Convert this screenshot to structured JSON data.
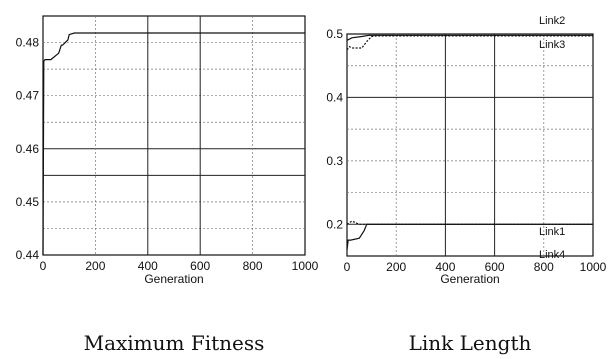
{
  "chart_data": [
    {
      "id": "fitness",
      "type": "line",
      "title": "Maximum Fitness",
      "xlabel": "Generation",
      "ylabel": "",
      "xlim": [
        0,
        1000
      ],
      "ylim": [
        0.44,
        0.485
      ],
      "xticks": [
        "0",
        "200",
        "400",
        "600",
        "800",
        "1000"
      ],
      "yticks": [
        "0.44",
        "0.45",
        "0.46",
        "0.47",
        "0.48"
      ],
      "grid": true,
      "series": [
        {
          "name": "",
          "x": [
            0,
            3,
            8,
            30,
            35,
            60,
            70,
            75,
            95,
            100,
            120,
            140,
            1000
          ],
          "y": [
            0.44,
            0.4765,
            0.4768,
            0.4768,
            0.477,
            0.478,
            0.4795,
            0.4795,
            0.4805,
            0.4815,
            0.4818,
            0.4818,
            0.4818
          ]
        }
      ]
    },
    {
      "id": "linklength",
      "type": "line",
      "title": "Link Length",
      "xlabel": "Generation",
      "ylabel": "",
      "xlim": [
        0,
        1000
      ],
      "ylim": [
        0.15,
        0.5
      ],
      "xticks": [
        "0",
        "200",
        "400",
        "600",
        "800",
        "1000"
      ],
      "yticks": [
        "0.2",
        "0.3",
        "0.4",
        "0.5"
      ],
      "grid": true,
      "series": [
        {
          "name": "Link2",
          "x": [
            0,
            20,
            60,
            90,
            1000
          ],
          "y": [
            0.49,
            0.494,
            0.496,
            0.498,
            0.498
          ]
        },
        {
          "name": "Link3",
          "x": [
            0,
            10,
            20,
            60,
            80,
            100,
            120,
            1000
          ],
          "y": [
            0.475,
            0.48,
            0.478,
            0.478,
            0.488,
            0.496,
            0.497,
            0.497
          ]
        },
        {
          "name": "Link1",
          "x": [
            0,
            20,
            50,
            80,
            1000
          ],
          "y": [
            0.2,
            0.205,
            0.2,
            0.2,
            0.2
          ]
        },
        {
          "name": "Link4",
          "x": [
            0,
            5,
            15,
            50,
            70,
            80,
            1000
          ],
          "y": [
            0.16,
            0.175,
            0.175,
            0.178,
            0.19,
            0.2,
            0.2
          ]
        }
      ]
    }
  ]
}
